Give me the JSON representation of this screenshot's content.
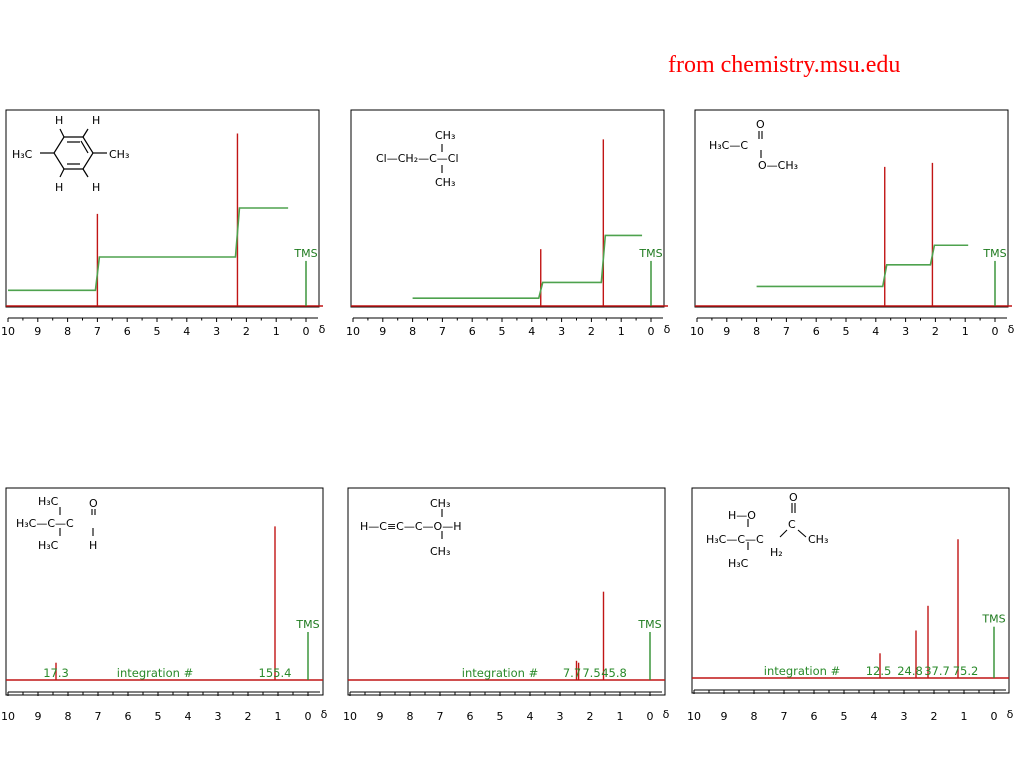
{
  "credit": "from chemistry.msu.edu",
  "chart_data": [
    {
      "type": "line",
      "spectrum": "1H NMR",
      "x_axis": {
        "range": [
          10,
          0
        ],
        "ticks": [
          "10",
          "9",
          "8",
          "7",
          "6",
          "5",
          "4",
          "3",
          "2",
          "1",
          "0"
        ],
        "unit": "δ"
      },
      "peaks": [
        {
          "x": 7.0,
          "height": 0.47
        },
        {
          "x": 2.3,
          "height": 0.88
        }
      ],
      "integration_curve": {
        "x_start": 10,
        "x_end": 0.6,
        "steps": [
          {
            "x": 7.0,
            "from": 0.08,
            "to": 0.25
          },
          {
            "x": 2.3,
            "from": 0.25,
            "to": 0.5
          }
        ]
      },
      "tms": {
        "x": 0,
        "height": 0.23,
        "label": "TMS"
      },
      "structure": {
        "atoms": [
          "H",
          "H",
          "H₃C",
          "CH₃",
          "H",
          "H"
        ]
      },
      "integration_labels": []
    },
    {
      "type": "line",
      "spectrum": "1H NMR",
      "x_axis": {
        "range": [
          10,
          0
        ],
        "ticks": [
          "10",
          "9",
          "8",
          "7",
          "6",
          "5",
          "4",
          "3",
          "2",
          "1",
          "0"
        ],
        "unit": "δ"
      },
      "peaks": [
        {
          "x": 3.7,
          "height": 0.29
        },
        {
          "x": 1.6,
          "height": 0.85
        }
      ],
      "integration_curve": {
        "x_start": 8,
        "x_end": 0.3,
        "steps": [
          {
            "x": 3.7,
            "from": 0.04,
            "to": 0.12
          },
          {
            "x": 1.6,
            "from": 0.12,
            "to": 0.36
          }
        ]
      },
      "tms": {
        "x": 0,
        "height": 0.23,
        "label": "TMS"
      },
      "structure": {
        "atoms": [
          "CH₃",
          "Cl—CH₂—C—Cl",
          "CH₃"
        ]
      },
      "integration_labels": []
    },
    {
      "type": "line",
      "spectrum": "1H NMR",
      "x_axis": {
        "range": [
          10,
          0
        ],
        "ticks": [
          "10",
          "9",
          "8",
          "7",
          "6",
          "5",
          "4",
          "3",
          "2",
          "1",
          "0"
        ],
        "unit": "δ"
      },
      "peaks": [
        {
          "x": 3.7,
          "height": 0.71
        },
        {
          "x": 2.1,
          "height": 0.73
        }
      ],
      "integration_curve": {
        "x_start": 8,
        "x_end": 0.9,
        "steps": [
          {
            "x": 3.7,
            "from": 0.1,
            "to": 0.21
          },
          {
            "x": 2.1,
            "from": 0.21,
            "to": 0.31
          }
        ]
      },
      "tms": {
        "x": 0,
        "height": 0.23,
        "label": "TMS"
      },
      "structure": {
        "atoms": [
          "O",
          "H₃C—C",
          "O—CH₃"
        ]
      },
      "integration_labels": []
    },
    {
      "type": "line",
      "spectrum": "1H NMR",
      "x_axis": {
        "range": [
          10,
          0
        ],
        "ticks": [
          "10",
          "9",
          "8",
          "7",
          "6",
          "5",
          "4",
          "3",
          "2",
          "1",
          "0"
        ],
        "unit": "δ"
      },
      "peaks": [
        {
          "x": 8.4,
          "height": 0.09
        },
        {
          "x": 1.1,
          "height": 0.8
        }
      ],
      "integration_curve": null,
      "tms": {
        "x": 0,
        "height": 0.25,
        "label": "TMS"
      },
      "structure": {
        "atoms": [
          "H₃C",
          "O",
          "H₃C—C—C",
          "H₃C",
          "H"
        ]
      },
      "integration_labels": [
        {
          "text": "17.3",
          "x": 8.4
        },
        {
          "text": "integration #",
          "x": 5.1
        },
        {
          "text": "155.4",
          "x": 1.1
        }
      ]
    },
    {
      "type": "line",
      "spectrum": "1H NMR",
      "x_axis": {
        "range": [
          10,
          0
        ],
        "ticks": [
          "10",
          "9",
          "8",
          "7",
          "6",
          "5",
          "4",
          "3",
          "2",
          "1",
          "0"
        ],
        "unit": "δ"
      },
      "peaks": [
        {
          "x": 2.45,
          "height": 0.1
        },
        {
          "x": 2.38,
          "height": 0.09
        },
        {
          "x": 1.55,
          "height": 0.46
        }
      ],
      "integration_curve": null,
      "tms": {
        "x": 0,
        "height": 0.25,
        "label": "TMS"
      },
      "structure": {
        "atoms": [
          "CH₃",
          "H—C≡C—C—O—H",
          "CH₃"
        ]
      },
      "integration_labels": [
        {
          "text": "integration #",
          "x": 5.0
        },
        {
          "text": "7.7",
          "x": 2.6
        },
        {
          "text": "7.5",
          "x": 1.95
        },
        {
          "text": "45.8",
          "x": 1.2
        }
      ]
    },
    {
      "type": "line",
      "spectrum": "1H NMR",
      "x_axis": {
        "range": [
          10,
          0
        ],
        "ticks": [
          "10",
          "9",
          "8",
          "7",
          "6",
          "5",
          "4",
          "3",
          "2",
          "1",
          "0"
        ],
        "unit": "δ"
      },
      "peaks": [
        {
          "x": 3.8,
          "height": 0.13
        },
        {
          "x": 2.6,
          "height": 0.25
        },
        {
          "x": 2.2,
          "height": 0.38
        },
        {
          "x": 1.2,
          "height": 0.73
        }
      ],
      "integration_curve": null,
      "tms": {
        "x": 0,
        "height": 0.27,
        "label": "TMS"
      },
      "structure": {
        "atoms": [
          "H—O",
          "O",
          "H₃C—C—C",
          "C",
          "CH₃",
          "H₂",
          "H₃C"
        ]
      },
      "integration_labels": [
        {
          "text": "integration #",
          "x": 6.4
        },
        {
          "text": "12.5",
          "x": 3.85
        },
        {
          "text": "24.8",
          "x": 2.8
        },
        {
          "text": "37.7",
          "x": 1.9
        },
        {
          "text": "75.2",
          "x": 0.95
        }
      ]
    }
  ]
}
